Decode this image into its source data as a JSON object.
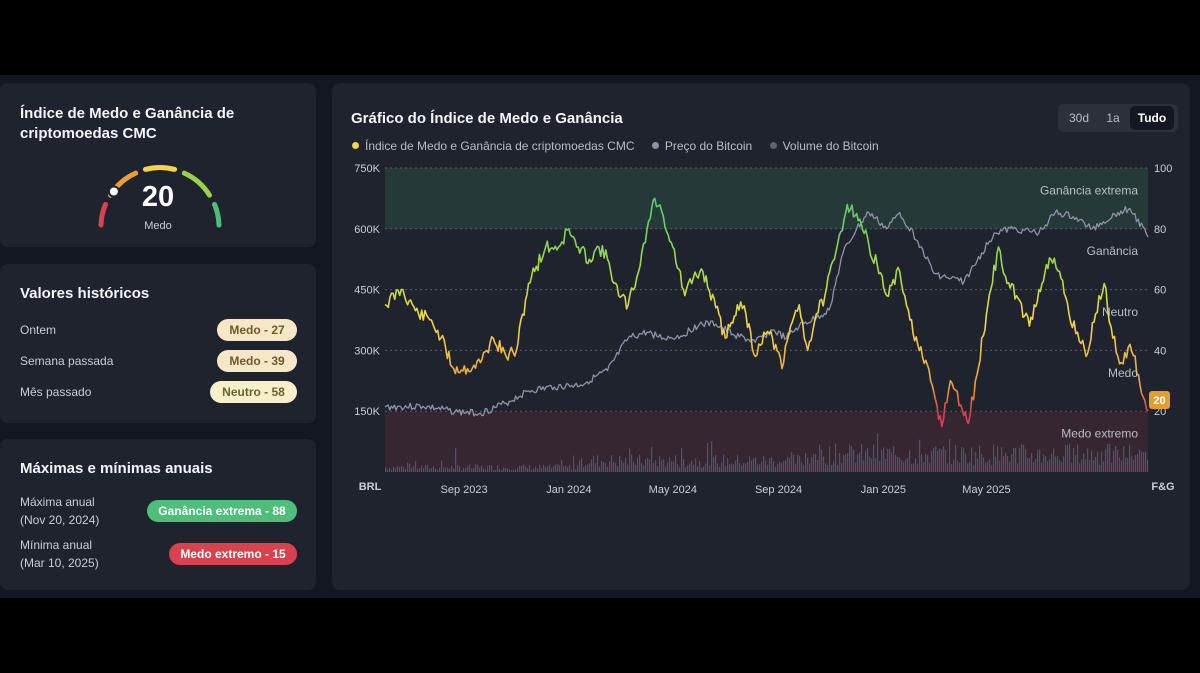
{
  "gauge_card": {
    "title_line1": "Índice de Medo e Ganância de",
    "title_line2": "criptomoedas CMC",
    "value": "20",
    "label": "Medo",
    "fraction": 0.2
  },
  "history_card": {
    "title": "Valores históricos",
    "rows": [
      {
        "label": "Ontem",
        "badge": "Medo - 27"
      },
      {
        "label": "Semana passada",
        "badge": "Medo - 39"
      },
      {
        "label": "Mês passado",
        "badge": "Neutro - 58"
      }
    ]
  },
  "annual_card": {
    "title": "Máximas e mínimas anuais",
    "rows": [
      {
        "label": "Máxima anual",
        "date": "(Nov 20, 2024)",
        "badge": "Ganância extrema - 88"
      },
      {
        "label": "Mínima anual",
        "date": "(Mar 10, 2025)",
        "badge": "Medo extremo - 15"
      }
    ]
  },
  "chart_card": {
    "title": "Gráfico do Índice de Medo e Ganância",
    "ranges": [
      "30d",
      "1a",
      "Tudo"
    ],
    "active_range": "Tudo",
    "legend": [
      "Índice de Medo e Ganância de criptomoedas CMC",
      "Preço do Bitcoin",
      "Volume do Bitcoin"
    ],
    "current_badge": "20"
  },
  "colors": {
    "extreme_greed": "#4fbe7a",
    "greed": "#9bd14a",
    "neutral": "#f3d646",
    "fear": "#ec9e35",
    "extreme_fear": "#d8414d",
    "btc_price": "#8e93a6",
    "btc_volume": "#5e6272"
  },
  "chart_data": {
    "type": "line",
    "left_axis_label": "BRL",
    "right_axis_label": "F&G",
    "left_ticks": [
      "750K",
      "600K",
      "450K",
      "300K",
      "150K"
    ],
    "right_ticks": [
      "100",
      "80",
      "60",
      "40",
      "20"
    ],
    "left_ylim": [
      0,
      750000
    ],
    "right_ylim": [
      0,
      100
    ],
    "x_ticks": [
      "Sep 2023",
      "Jan 2024",
      "May 2024",
      "Sep 2024",
      "Jan 2025",
      "May 2025"
    ],
    "zones": [
      "Ganância extrema",
      "Ganância",
      "Neutro",
      "Medo",
      "Medo extremo"
    ],
    "fear_greed": [
      {
        "x": "2023-06-01",
        "y": 55
      },
      {
        "x": "2023-06-20",
        "y": 60
      },
      {
        "x": "2023-07-10",
        "y": 52
      },
      {
        "x": "2023-07-25",
        "y": 50
      },
      {
        "x": "2023-08-05",
        "y": 44
      },
      {
        "x": "2023-08-20",
        "y": 34
      },
      {
        "x": "2023-09-05",
        "y": 34
      },
      {
        "x": "2023-09-20",
        "y": 36
      },
      {
        "x": "2023-10-05",
        "y": 44
      },
      {
        "x": "2023-10-20",
        "y": 38
      },
      {
        "x": "2023-11-01",
        "y": 40
      },
      {
        "x": "2023-11-15",
        "y": 62
      },
      {
        "x": "2023-12-05",
        "y": 74
      },
      {
        "x": "2023-12-20",
        "y": 74
      },
      {
        "x": "2024-01-01",
        "y": 80
      },
      {
        "x": "2024-01-10",
        "y": 74
      },
      {
        "x": "2024-01-25",
        "y": 70
      },
      {
        "x": "2024-02-05",
        "y": 74
      },
      {
        "x": "2024-02-15",
        "y": 70
      },
      {
        "x": "2024-02-28",
        "y": 58
      },
      {
        "x": "2024-03-10",
        "y": 55
      },
      {
        "x": "2024-03-20",
        "y": 64
      },
      {
        "x": "2024-04-01",
        "y": 80
      },
      {
        "x": "2024-04-10",
        "y": 90
      },
      {
        "x": "2024-04-20",
        "y": 84
      },
      {
        "x": "2024-05-01",
        "y": 74
      },
      {
        "x": "2024-05-15",
        "y": 58
      },
      {
        "x": "2024-05-25",
        "y": 64
      },
      {
        "x": "2024-06-05",
        "y": 66
      },
      {
        "x": "2024-06-20",
        "y": 54
      },
      {
        "x": "2024-07-01",
        "y": 44
      },
      {
        "x": "2024-07-15",
        "y": 55
      },
      {
        "x": "2024-07-25",
        "y": 52
      },
      {
        "x": "2024-08-05",
        "y": 38
      },
      {
        "x": "2024-08-15",
        "y": 46
      },
      {
        "x": "2024-08-25",
        "y": 44
      },
      {
        "x": "2024-09-05",
        "y": 34
      },
      {
        "x": "2024-09-15",
        "y": 48
      },
      {
        "x": "2024-09-25",
        "y": 55
      },
      {
        "x": "2024-10-05",
        "y": 40
      },
      {
        "x": "2024-10-15",
        "y": 52
      },
      {
        "x": "2024-10-25",
        "y": 58
      },
      {
        "x": "2024-11-05",
        "y": 70
      },
      {
        "x": "2024-11-20",
        "y": 88
      },
      {
        "x": "2024-12-01",
        "y": 85
      },
      {
        "x": "2024-12-15",
        "y": 75
      },
      {
        "x": "2024-12-25",
        "y": 68
      },
      {
        "x": "2025-01-05",
        "y": 58
      },
      {
        "x": "2025-01-20",
        "y": 66
      },
      {
        "x": "2025-02-01",
        "y": 50
      },
      {
        "x": "2025-02-10",
        "y": 42
      },
      {
        "x": "2025-02-25",
        "y": 30
      },
      {
        "x": "2025-03-10",
        "y": 15
      },
      {
        "x": "2025-03-20",
        "y": 30
      },
      {
        "x": "2025-04-01",
        "y": 22
      },
      {
        "x": "2025-04-10",
        "y": 16
      },
      {
        "x": "2025-04-20",
        "y": 32
      },
      {
        "x": "2025-05-01",
        "y": 52
      },
      {
        "x": "2025-05-15",
        "y": 74
      },
      {
        "x": "2025-05-25",
        "y": 62
      },
      {
        "x": "2025-06-05",
        "y": 58
      },
      {
        "x": "2025-06-20",
        "y": 48
      },
      {
        "x": "2025-07-01",
        "y": 60
      },
      {
        "x": "2025-07-15",
        "y": 70
      },
      {
        "x": "2025-07-25",
        "y": 66
      },
      {
        "x": "2025-08-05",
        "y": 52
      },
      {
        "x": "2025-08-15",
        "y": 46
      },
      {
        "x": "2025-08-25",
        "y": 38
      },
      {
        "x": "2025-09-05",
        "y": 52
      },
      {
        "x": "2025-09-15",
        "y": 62
      },
      {
        "x": "2025-09-25",
        "y": 44
      },
      {
        "x": "2025-10-05",
        "y": 36
      },
      {
        "x": "2025-10-15",
        "y": 42
      },
      {
        "x": "2025-10-25",
        "y": 32
      },
      {
        "x": "2025-11-05",
        "y": 20
      }
    ],
    "btc_price": [
      {
        "x": "2023-06-01",
        "y": 160000
      },
      {
        "x": "2023-07-15",
        "y": 162000
      },
      {
        "x": "2023-08-25",
        "y": 148000
      },
      {
        "x": "2023-09-20",
        "y": 145000
      },
      {
        "x": "2023-10-20",
        "y": 170000
      },
      {
        "x": "2023-11-15",
        "y": 200000
      },
      {
        "x": "2023-12-15",
        "y": 210000
      },
      {
        "x": "2024-01-15",
        "y": 215000
      },
      {
        "x": "2024-02-15",
        "y": 250000
      },
      {
        "x": "2024-03-10",
        "y": 330000
      },
      {
        "x": "2024-04-01",
        "y": 345000
      },
      {
        "x": "2024-04-20",
        "y": 330000
      },
      {
        "x": "2024-05-10",
        "y": 335000
      },
      {
        "x": "2024-06-01",
        "y": 365000
      },
      {
        "x": "2024-06-20",
        "y": 365000
      },
      {
        "x": "2024-07-10",
        "y": 340000
      },
      {
        "x": "2024-08-05",
        "y": 320000
      },
      {
        "x": "2024-08-25",
        "y": 350000
      },
      {
        "x": "2024-09-10",
        "y": 330000
      },
      {
        "x": "2024-09-25",
        "y": 360000
      },
      {
        "x": "2024-10-15",
        "y": 380000
      },
      {
        "x": "2024-10-30",
        "y": 400000
      },
      {
        "x": "2024-11-15",
        "y": 540000
      },
      {
        "x": "2024-12-01",
        "y": 600000
      },
      {
        "x": "2024-12-15",
        "y": 640000
      },
      {
        "x": "2025-01-05",
        "y": 600000
      },
      {
        "x": "2025-01-20",
        "y": 640000
      },
      {
        "x": "2025-02-10",
        "y": 570000
      },
      {
        "x": "2025-03-01",
        "y": 490000
      },
      {
        "x": "2025-03-15",
        "y": 480000
      },
      {
        "x": "2025-04-05",
        "y": 470000
      },
      {
        "x": "2025-04-20",
        "y": 520000
      },
      {
        "x": "2025-05-10",
        "y": 590000
      },
      {
        "x": "2025-06-01",
        "y": 600000
      },
      {
        "x": "2025-07-01",
        "y": 590000
      },
      {
        "x": "2025-07-20",
        "y": 640000
      },
      {
        "x": "2025-08-10",
        "y": 630000
      },
      {
        "x": "2025-09-01",
        "y": 600000
      },
      {
        "x": "2025-10-01",
        "y": 640000
      },
      {
        "x": "2025-10-15",
        "y": 650000
      },
      {
        "x": "2025-11-05",
        "y": 580000
      }
    ]
  }
}
